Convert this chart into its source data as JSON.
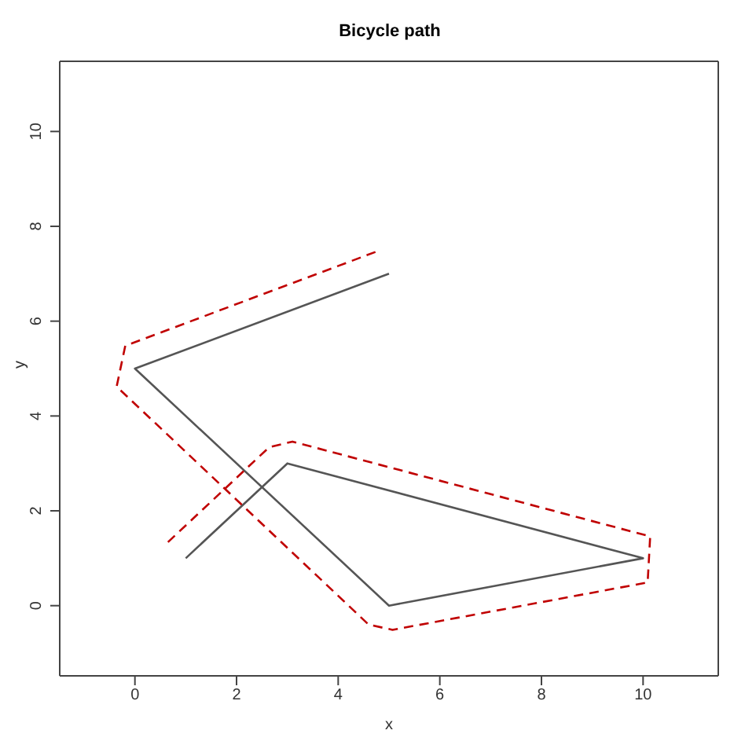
{
  "chart_data": {
    "type": "line",
    "title": "Bicycle path",
    "xlabel": "x",
    "ylabel": "y",
    "xlim": [
      -1.48,
      11.48
    ],
    "ylim": [
      -1.48,
      11.48
    ],
    "xticks": [
      0,
      2,
      4,
      6,
      8,
      10
    ],
    "yticks": [
      0,
      2,
      4,
      6,
      8,
      10
    ],
    "series": [
      {
        "color": "#555555",
        "line_style": "solid",
        "x": [
          1,
          3,
          10,
          5,
          0,
          5
        ],
        "values": [
          1,
          3,
          1,
          0,
          5,
          7
        ]
      },
      {
        "color": "#c00000",
        "line_style": "dashed",
        "x": [
          0.65,
          2.64,
          3.1,
          10.14,
          10.09,
          5.07,
          4.6,
          -0.36,
          -0.19,
          4.81
        ],
        "values": [
          1.34,
          3.34,
          3.46,
          1.46,
          0.49,
          -0.51,
          -0.4,
          4.62,
          5.48,
          7.49
        ]
      }
    ],
    "grid": false,
    "marker": "none"
  }
}
